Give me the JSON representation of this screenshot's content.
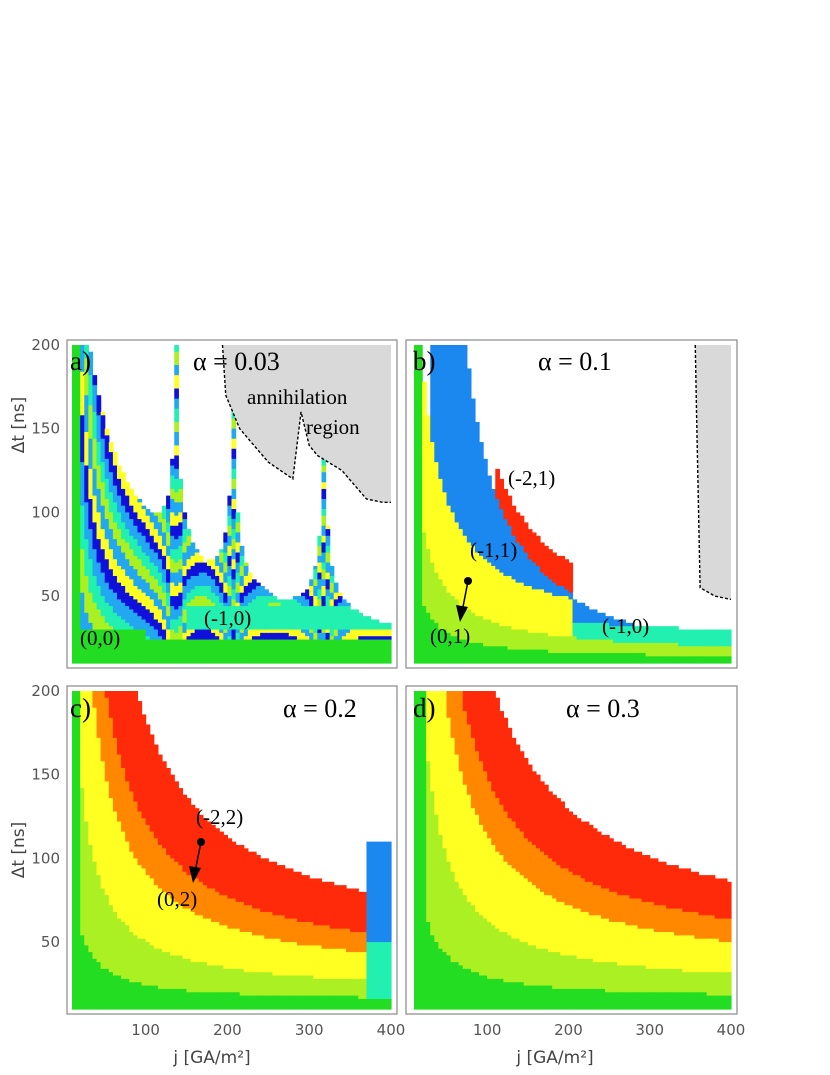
{
  "chart_data": [
    {
      "type": "heatmap",
      "panel": "a)",
      "alpha_label": "α = 0.03",
      "xlabel": "",
      "ylabel": "Δt [ns]",
      "xlim": [
        10,
        400
      ],
      "ylim": [
        10,
        200
      ],
      "xticks": [
        "100",
        "200",
        "300",
        "400"
      ],
      "yticks": [
        "50",
        "100",
        "150",
        "200"
      ],
      "annotations": [
        "annihilation",
        "region",
        "(0,0)",
        "(-1,0)"
      ],
      "annihilation_boundary": [
        [
          194,
          200
        ],
        [
          198,
          170
        ],
        [
          215,
          150
        ],
        [
          250,
          130
        ],
        [
          280,
          120
        ],
        [
          290,
          160
        ],
        [
          300,
          140
        ],
        [
          310,
          134
        ],
        [
          340,
          125
        ],
        [
          370,
          108
        ],
        [
          390,
          106
        ],
        [
          400,
          106
        ]
      ],
      "peaks_x": [
        137,
        207,
        318
      ],
      "levels": {
        "green": 1,
        "yellowgreen": 2,
        "yellow": 3,
        "teal": 4,
        "lightblue": 5,
        "blue": 6,
        "white": 7
      },
      "mode": "resonance"
    },
    {
      "type": "heatmap",
      "panel": "b)",
      "alpha_label": "α = 0.1",
      "xlabel": "",
      "ylabel": "",
      "xlim": [
        10,
        400
      ],
      "ylim": [
        10,
        200
      ],
      "xticks": [],
      "yticks": [],
      "annotations": [
        "(-2,1)",
        "(-1,1)",
        "(0,1)",
        "(-1,0)"
      ],
      "annihilation_boundary": [
        [
          356,
          200
        ],
        [
          358,
          150
        ],
        [
          362,
          55
        ],
        [
          380,
          50
        ],
        [
          400,
          48
        ]
      ],
      "peaks_x": [
        207
      ],
      "mode": "bands_b"
    },
    {
      "type": "heatmap",
      "panel": "c)",
      "alpha_label": "α = 0.2",
      "xlabel": "j [GA/m²]",
      "ylabel": "Δt [ns]",
      "xlim": [
        10,
        400
      ],
      "ylim": [
        10,
        200
      ],
      "xticks": [
        "100",
        "200",
        "300",
        "400"
      ],
      "yticks": [
        "50",
        "100",
        "150",
        "200"
      ],
      "annotations": [
        "(-2,2)",
        "(0,2)"
      ],
      "peaks_x": [
        375
      ],
      "mode": "bands_c"
    },
    {
      "type": "heatmap",
      "panel": "d)",
      "alpha_label": "α = 0.3",
      "xlabel": "j [GA/m²]",
      "ylabel": "",
      "xlim": [
        10,
        400
      ],
      "ylim": [
        10,
        200
      ],
      "xticks": [
        "100",
        "200",
        "300",
        "400"
      ],
      "yticks": [],
      "annotations": [],
      "mode": "bands_d"
    }
  ],
  "colors": {
    "green": "#22dd22",
    "yellowgreen": "#aaf022",
    "yellow": "#ffff22",
    "orange": "#ff8800",
    "red": "#ff2a0a",
    "teal": "#22f0b0",
    "lightblue": "#22a8f0",
    "midblue": "#1a88ee",
    "blue": "#1010dd",
    "grey": "#d9d9d9"
  }
}
